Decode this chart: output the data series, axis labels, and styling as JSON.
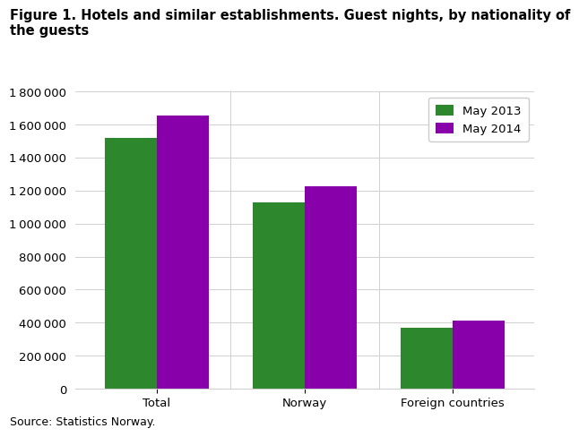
{
  "title_line1": "Figure 1. Hotels and similar establishments. Guest nights, by nationality of",
  "title_line2": "the guests",
  "categories": [
    "Total",
    "Norway",
    "Foreign countries"
  ],
  "series": [
    {
      "label": "May 2013",
      "values": [
        1520000,
        1130000,
        370000
      ],
      "color": "#2d882d"
    },
    {
      "label": "May 2014",
      "values": [
        1655000,
        1225000,
        415000
      ],
      "color": "#8800AA"
    }
  ],
  "ylim": [
    0,
    1800000
  ],
  "yticks": [
    0,
    200000,
    400000,
    600000,
    800000,
    1000000,
    1200000,
    1400000,
    1600000,
    1800000
  ],
  "source": "Source: Statistics Norway.",
  "bar_width": 0.35,
  "background_color": "#ffffff",
  "grid_color": "#d0d0d0",
  "title_fontsize": 10.5,
  "tick_fontsize": 9.5,
  "legend_fontsize": 9.5,
  "source_fontsize": 9
}
